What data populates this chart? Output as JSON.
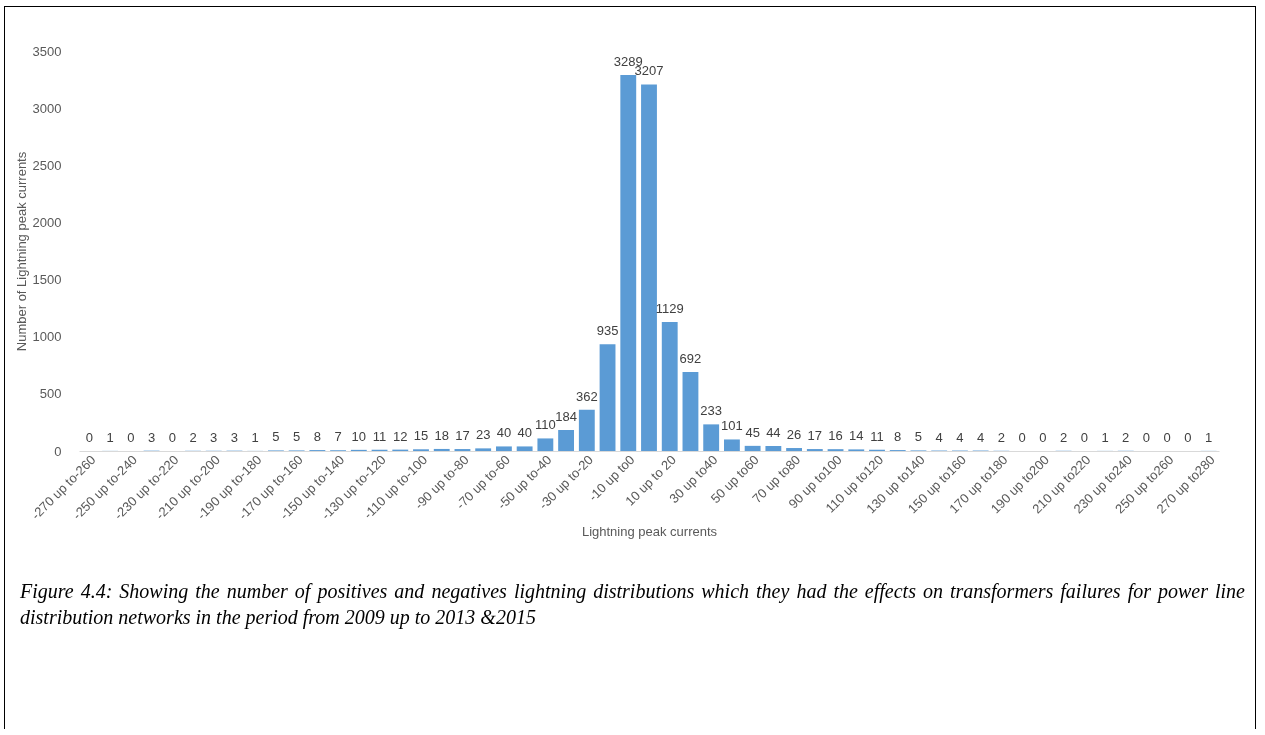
{
  "chart_data": {
    "type": "bar",
    "xlabel": "Lightning peak currents",
    "ylabel": "Number of Lightning peak currents",
    "categories": [
      "-270 up to-260",
      null,
      "-250 up to-240",
      null,
      "-230 up to-220",
      null,
      "-210 up to-200",
      null,
      "-190 up to-180",
      null,
      "-170 up to-160",
      null,
      "-150 up to-140",
      null,
      "-130 up to-120",
      null,
      "-110 up to-100",
      null,
      "-90 up to-80",
      null,
      "-70 up to-60",
      null,
      "-50 up to-40",
      null,
      "-30 up to-20",
      null,
      "-10 up to0",
      null,
      "10 up to 20",
      null,
      "30 up to40",
      null,
      "50 up to60",
      null,
      "70 up to80",
      null,
      "90 up to100",
      null,
      "110 up to120",
      null,
      "130 up to140",
      null,
      "150 up to160",
      null,
      "170 up to180",
      null,
      "190 up to200",
      null,
      "210 up to220",
      null,
      "230 up to240",
      null,
      "250 up to260",
      null,
      "270 up to280"
    ],
    "values": [
      0,
      1,
      0,
      3,
      0,
      2,
      3,
      3,
      1,
      5,
      5,
      8,
      7,
      10,
      11,
      12,
      15,
      18,
      17,
      23,
      40,
      40,
      110,
      184,
      362,
      935,
      3289,
      3207,
      1129,
      692,
      233,
      101,
      45,
      44,
      26,
      17,
      16,
      14,
      11,
      8,
      5,
      4,
      4,
      4,
      2,
      0,
      0,
      2,
      0,
      1,
      2,
      0,
      0,
      0,
      1
    ],
    "color": "#5b9bd5",
    "ylim": [
      0,
      3500
    ],
    "yticks": [
      0,
      500,
      1000,
      1500,
      2000,
      2500,
      3000,
      3500
    ],
    "grid": false,
    "data_labels": true,
    "annotations": [
      "Figure 4.4: Showing the number of positives and negatives lightning distributions which they had the effects on transformers failures for power line distribution networks in the period from 2009 up to 2013 &2015"
    ]
  }
}
